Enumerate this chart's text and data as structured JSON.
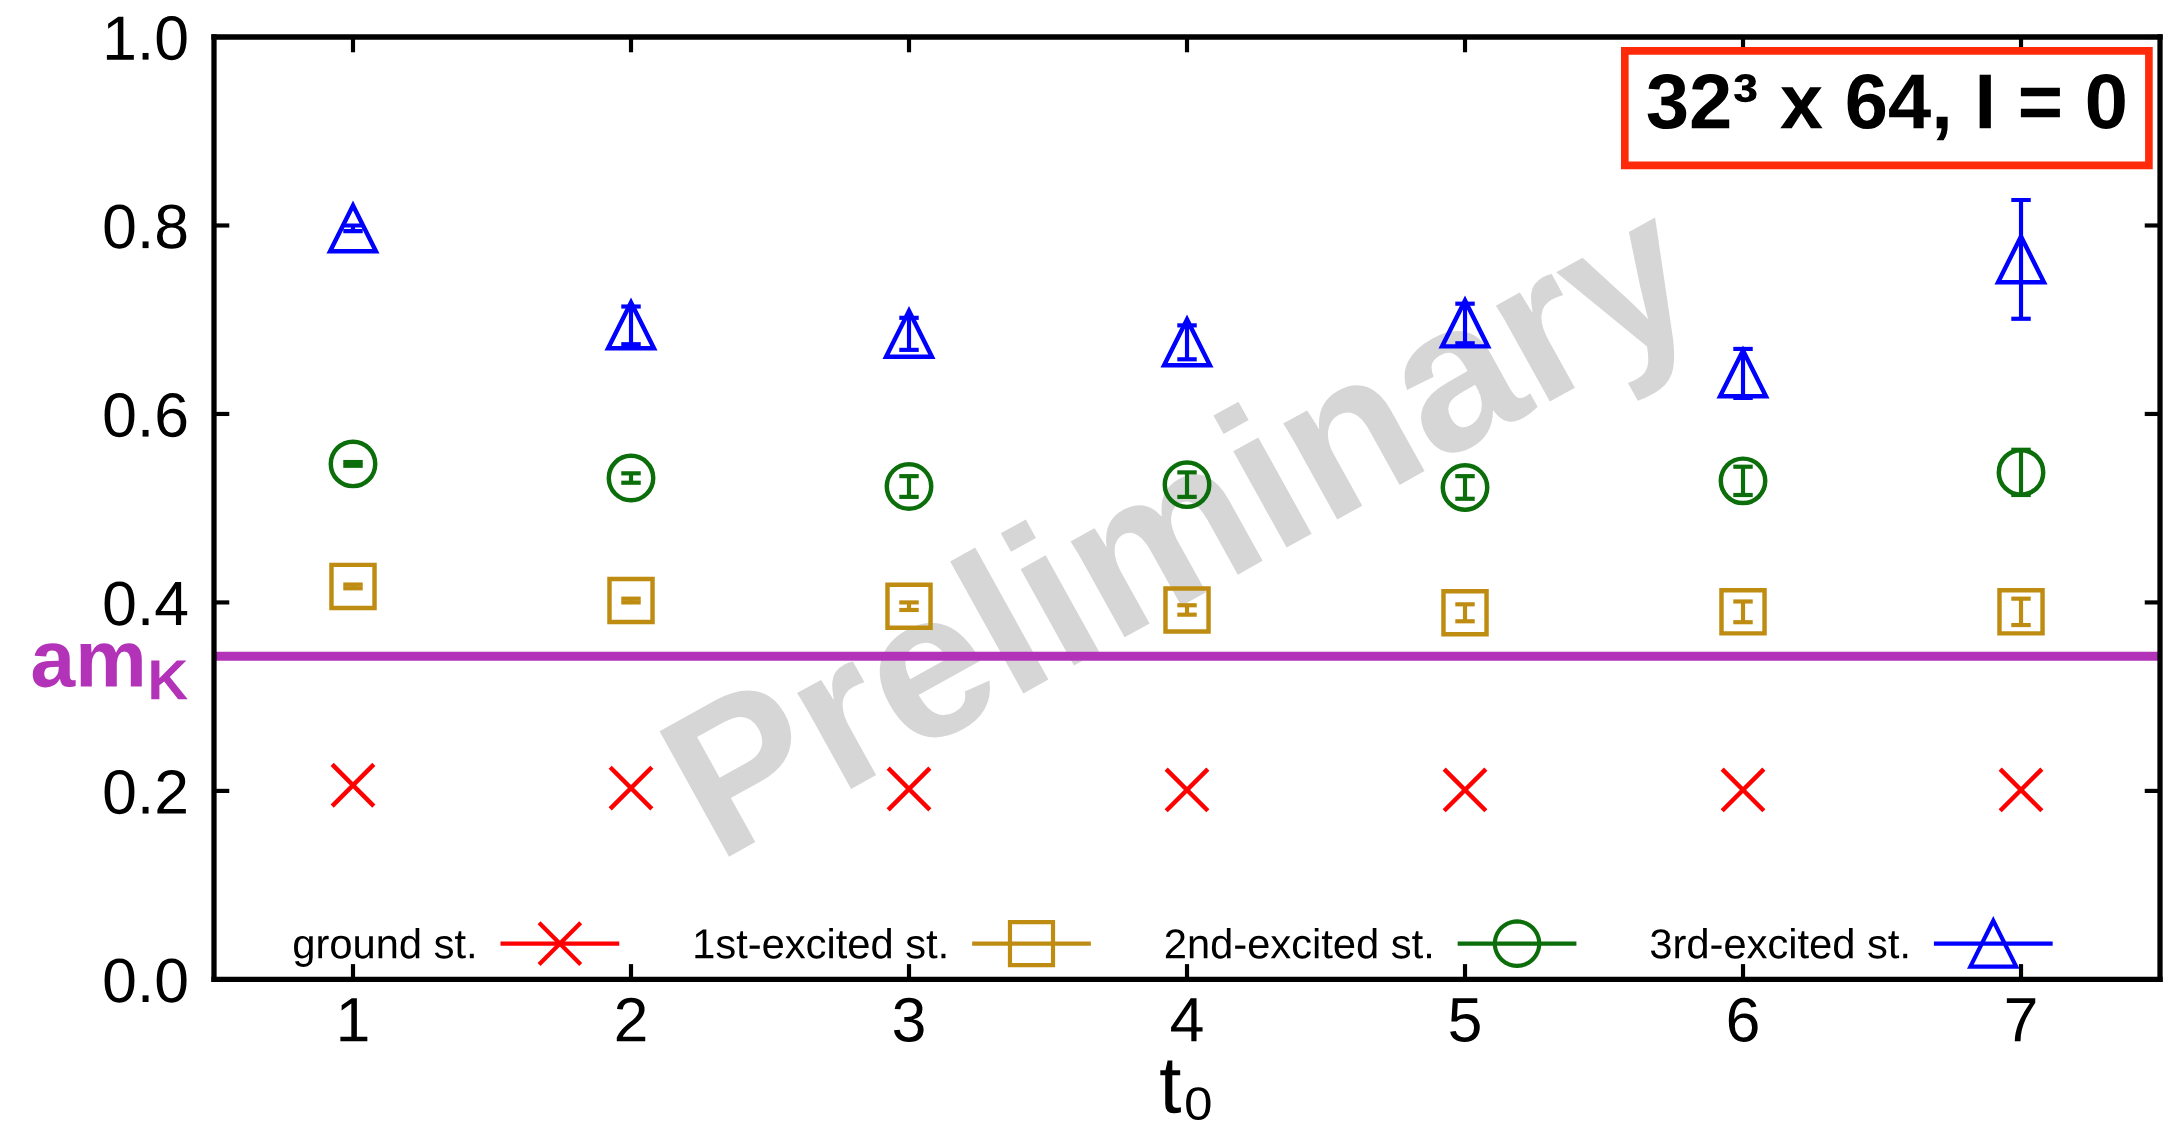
{
  "chart_data": {
    "type": "scatter",
    "xlabel": "t₀",
    "x": [
      1,
      2,
      3,
      4,
      5,
      6,
      7
    ],
    "xlim": [
      0.5,
      7.5
    ],
    "xticks": [
      1,
      2,
      3,
      4,
      5,
      6,
      7
    ],
    "ylim": [
      0,
      1
    ],
    "yticks": [
      {
        "value": 0,
        "label": "0.0"
      },
      0.2,
      0.4,
      0.6,
      0.8,
      {
        "value": 1,
        "label": "1.0"
      }
    ],
    "series": [
      {
        "name": "ground st.",
        "color": "#ff0000",
        "marker": "cross",
        "values": [
          0.206,
          0.203,
          0.202,
          0.201,
          0.201,
          0.201,
          0.201
        ]
      },
      {
        "name": "1st-excited st.",
        "color": "#bf8c12",
        "marker": "square",
        "values": [
          0.417,
          0.402,
          0.396,
          0.392,
          0.389,
          0.39,
          0.39
        ],
        "errors": [
          0.002,
          0.002,
          0.004,
          0.005,
          0.009,
          0.011,
          0.014
        ]
      },
      {
        "name": "2nd-excited st.",
        "color": "#0b6e0b",
        "marker": "circle",
        "values": [
          0.547,
          0.532,
          0.523,
          0.525,
          0.522,
          0.529,
          0.538
        ],
        "errors": [
          0.002,
          0.005,
          0.011,
          0.013,
          0.012,
          0.015,
          0.024
        ]
      },
      {
        "name": "3rd-excited st.",
        "color": "#0000ff",
        "marker": "triangle",
        "values": [
          0.797,
          0.694,
          0.685,
          0.676,
          0.696,
          0.643,
          0.764
        ],
        "errors": [
          0.003,
          0.02,
          0.017,
          0.018,
          0.021,
          0.026,
          0.063
        ]
      }
    ],
    "ref_lines": [
      {
        "axis": "y",
        "value": 0.343,
        "label": "am$_{K}$",
        "color": "#b233b8",
        "line_style": "solid"
      }
    ],
    "annotations": [
      "32³ x 64, I = 0",
      "Preliminary"
    ],
    "legend": "bottom"
  }
}
